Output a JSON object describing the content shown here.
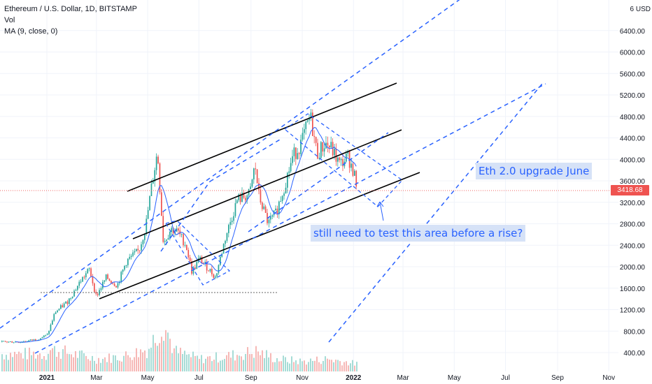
{
  "legend": {
    "symbol": "Ethereum / U.S. Dollar, 1D, BITSTAMP",
    "volume": "Vol",
    "ma": "MA (9, close, 0)"
  },
  "price_label": "3418.68",
  "annotations": {
    "upgrade": "Eth 2.0 upgrade June",
    "test_area": "still need to test this area before a rise?"
  },
  "colors": {
    "up": "#26a69a",
    "down": "#ef5350",
    "trendline_blue": "#2962ff",
    "channel_black": "#000000",
    "ma_line": "#2962ff",
    "note_bg": "#d6e2f7",
    "grid": "#f0f3fa",
    "axis_text": "#131722"
  },
  "chart_data": {
    "type": "candlestick",
    "title": "Ethereum / U.S. Dollar, 1D, BITSTAMP",
    "currency_label": "6 USD",
    "y_axis_ticks": [
      400,
      800,
      1200,
      1600,
      2000,
      2400,
      2800,
      3200,
      3600,
      4000,
      4400,
      4800,
      5200,
      5600,
      6000,
      6400
    ],
    "x_axis_ticks": [
      "2021",
      "Mar",
      "May",
      "Jul",
      "Sep",
      "Nov",
      "2022",
      "Mar",
      "May",
      "Jul",
      "Sep",
      "Nov"
    ],
    "last_price": 3418.68,
    "grid": true,
    "price_path": [
      {
        "date": "2020-12-01",
        "close": 600
      },
      {
        "date": "2020-12-20",
        "close": 650
      },
      {
        "date": "2021-01-01",
        "close": 730
      },
      {
        "date": "2021-01-10",
        "close": 1150
      },
      {
        "date": "2021-01-25",
        "close": 1350
      },
      {
        "date": "2021-02-10",
        "close": 1750
      },
      {
        "date": "2021-02-20",
        "close": 1950
      },
      {
        "date": "2021-02-28",
        "close": 1450
      },
      {
        "date": "2021-03-12",
        "close": 1800
      },
      {
        "date": "2021-03-25",
        "close": 1650
      },
      {
        "date": "2021-04-05",
        "close": 2100
      },
      {
        "date": "2021-04-20",
        "close": 2300
      },
      {
        "date": "2021-04-28",
        "close": 2750
      },
      {
        "date": "2021-05-05",
        "close": 3500
      },
      {
        "date": "2021-05-12",
        "close": 4150
      },
      {
        "date": "2021-05-19",
        "close": 2450
      },
      {
        "date": "2021-05-28",
        "close": 2700
      },
      {
        "date": "2021-06-05",
        "close": 2650
      },
      {
        "date": "2021-06-15",
        "close": 2400
      },
      {
        "date": "2021-06-22",
        "close": 1900
      },
      {
        "date": "2021-07-01",
        "close": 2150
      },
      {
        "date": "2021-07-15",
        "close": 1900
      },
      {
        "date": "2021-07-20",
        "close": 1800
      },
      {
        "date": "2021-08-01",
        "close": 2550
      },
      {
        "date": "2021-08-15",
        "close": 3250
      },
      {
        "date": "2021-08-30",
        "close": 3350
      },
      {
        "date": "2021-09-05",
        "close": 3900
      },
      {
        "date": "2021-09-10",
        "close": 3300
      },
      {
        "date": "2021-09-21",
        "close": 2800
      },
      {
        "date": "2021-09-30",
        "close": 3000
      },
      {
        "date": "2021-10-10",
        "close": 3500
      },
      {
        "date": "2021-10-20",
        "close": 4050
      },
      {
        "date": "2021-10-30",
        "close": 4300
      },
      {
        "date": "2021-11-10",
        "close": 4800
      },
      {
        "date": "2021-11-18",
        "close": 4100
      },
      {
        "date": "2021-11-28",
        "close": 4300
      },
      {
        "date": "2021-12-05",
        "close": 4200
      },
      {
        "date": "2021-12-15",
        "close": 3900
      },
      {
        "date": "2021-12-25",
        "close": 4050
      },
      {
        "date": "2022-01-01",
        "close": 3750
      },
      {
        "date": "2022-01-05",
        "close": 3418.68
      }
    ],
    "volume_profile": [
      {
        "date": "2021-01-01",
        "volume": 0.45
      },
      {
        "date": "2021-02-01",
        "volume": 0.35
      },
      {
        "date": "2021-03-01",
        "volume": 0.25
      },
      {
        "date": "2021-04-01",
        "volume": 0.3
      },
      {
        "date": "2021-05-01",
        "volume": 0.45
      },
      {
        "date": "2021-05-19",
        "volume": 1.0
      },
      {
        "date": "2021-06-01",
        "volume": 0.4
      },
      {
        "date": "2021-07-01",
        "volume": 0.25
      },
      {
        "date": "2021-08-01",
        "volume": 0.3
      },
      {
        "date": "2021-09-07",
        "volume": 0.4
      },
      {
        "date": "2021-10-01",
        "volume": 0.25
      },
      {
        "date": "2021-11-01",
        "volume": 0.2
      },
      {
        "date": "2021-12-01",
        "volume": 0.25
      },
      {
        "date": "2022-01-05",
        "volume": 0.15
      }
    ],
    "ma_period": 9
  }
}
